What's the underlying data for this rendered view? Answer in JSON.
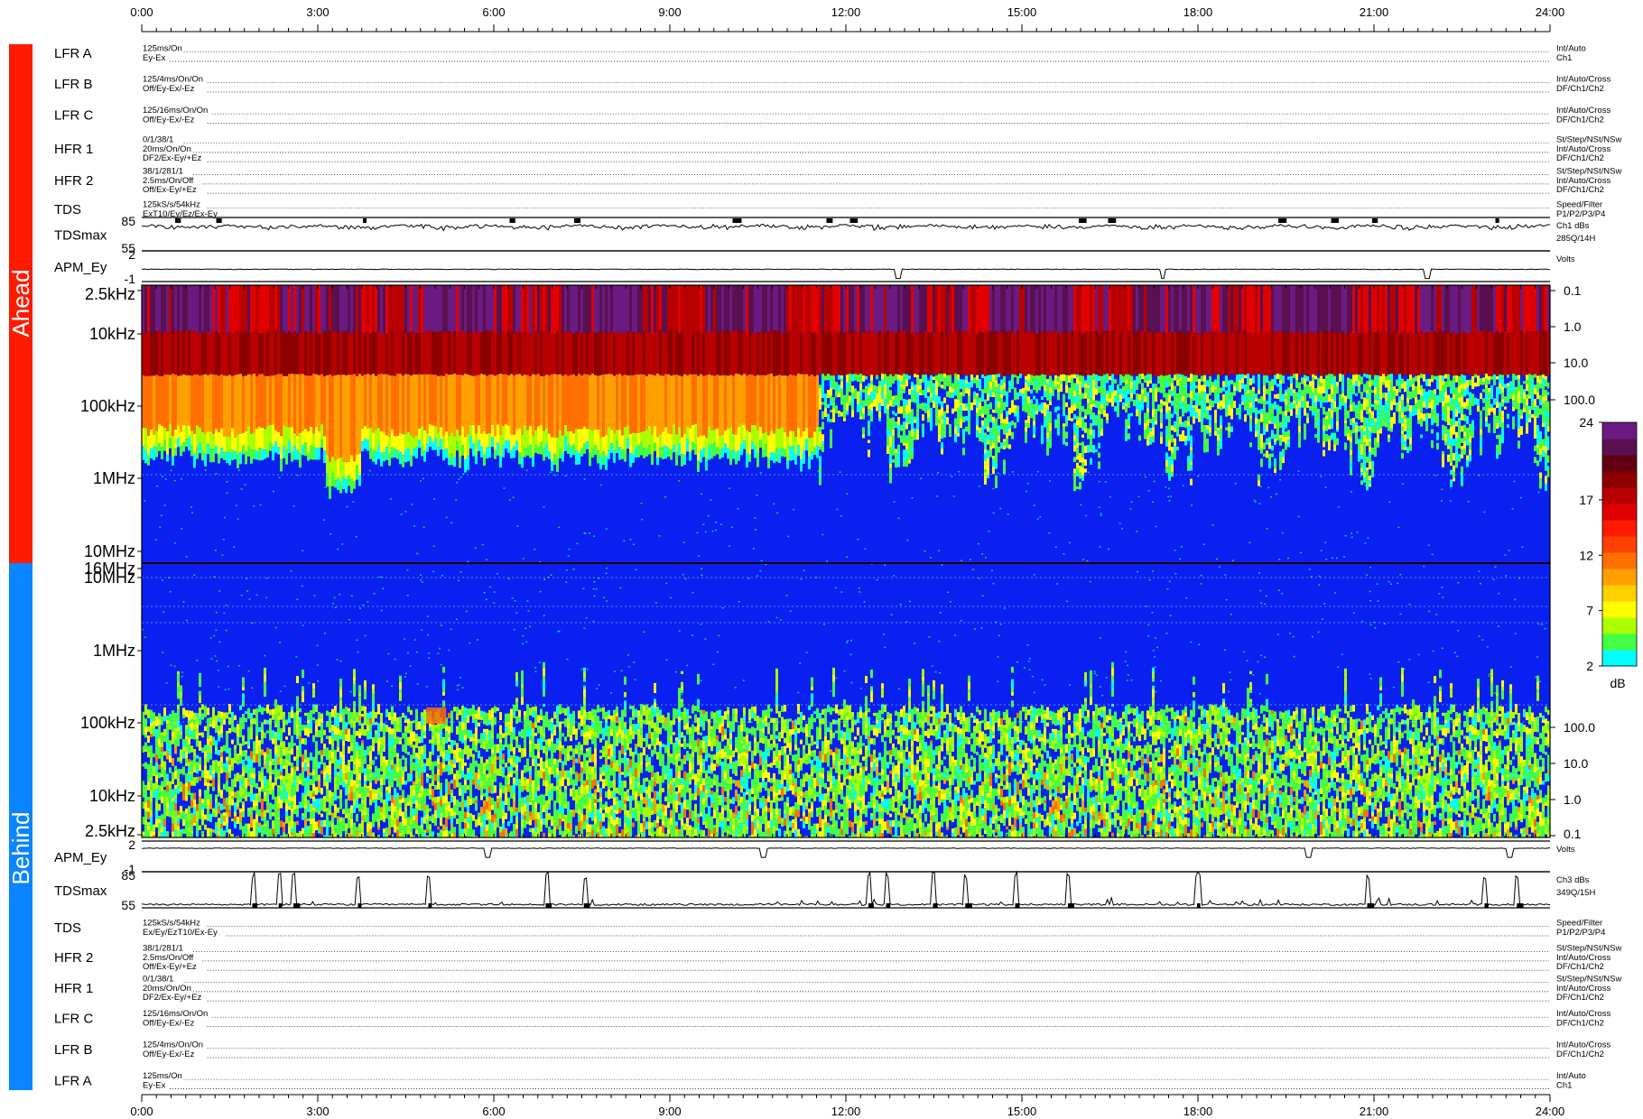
{
  "chart_data": {
    "type": "heatmap",
    "x_axis": {
      "start": "0:00",
      "end": "24:00",
      "tick_labels": [
        "0:00",
        "3:00",
        "6:00",
        "9:00",
        "12:00",
        "15:00",
        "18:00",
        "21:00",
        "24:00"
      ],
      "tick_hours": [
        0,
        3,
        6,
        9,
        12,
        15,
        18,
        21,
        24
      ]
    },
    "side_labels": {
      "ahead": "Ahead",
      "behind": "Behind"
    },
    "side_colors": {
      "ahead": "#ff1a00",
      "behind": "#0a84ff"
    },
    "ahead_rows": [
      {
        "name": "LFR A",
        "lines": [
          "125ms/On",
          "Ey-Ex"
        ],
        "right": [
          "Int/Auto",
          "Ch1"
        ]
      },
      {
        "name": "LFR B",
        "lines": [
          "125/4ms/On/On",
          "Off/Ey-Ex/-Ez"
        ],
        "right": [
          "Int/Auto/Cross",
          "DF/Ch1/Ch2"
        ]
      },
      {
        "name": "LFR C",
        "lines": [
          "125/16ms/On/On",
          "Off/Ey-Ex/-Ez"
        ],
        "right": [
          "Int/Auto/Cross",
          "DF/Ch1/Ch2"
        ]
      },
      {
        "name": "HFR 1",
        "lines": [
          "0/1/38/1",
          "20ms/On/On",
          "DF2/Ex-Ey/+Ez"
        ],
        "right": [
          "St/Step/NSt/NSw",
          "Int/Auto/Cross",
          "DF/Ch1/Ch2"
        ]
      },
      {
        "name": "HFR 2",
        "lines": [
          "38/1/281/1",
          "2.5ms/On/Off",
          "Off/Ex-Ey/+Ez"
        ],
        "right": [
          "St/Step/NSt/NSw",
          "Int/Auto/Cross",
          "DF/Ch1/Ch2"
        ]
      },
      {
        "name": "TDS",
        "lines": [
          "125kS/s/54kHz",
          "ExT10/Ey/Ez/Ex-Ey"
        ],
        "right": [
          "Speed/Filter",
          "P1/P2/P3/P4"
        ]
      }
    ],
    "behind_rows": [
      {
        "name": "TDS",
        "lines": [
          "125kS/s/54kHz",
          "Ex/Ey/EzT10/Ex-Ey"
        ],
        "right": [
          "Speed/Filter",
          "P1/P2/P3/P4"
        ]
      },
      {
        "name": "HFR 2",
        "lines": [
          "38/1/281/1",
          "2.5ms/On/Off",
          "Off/Ex-Ey/+Ez"
        ],
        "right": [
          "St/Step/NSt/NSw",
          "Int/Auto/Cross",
          "DF/Ch1/Ch2"
        ]
      },
      {
        "name": "HFR 1",
        "lines": [
          "0/1/38/1",
          "20ms/On/On",
          "DF2/Ex-Ey/+Ez"
        ],
        "right": [
          "St/Step/NSt/NSw",
          "Int/Auto/Cross",
          "DF/Ch1/Ch2"
        ]
      },
      {
        "name": "LFR C",
        "lines": [
          "125/16ms/On/On",
          "Off/Ey-Ex/-Ez"
        ],
        "right": [
          "Int/Auto/Cross",
          "DF/Ch1/Ch2"
        ]
      },
      {
        "name": "LFR B",
        "lines": [
          "125/4ms/On/On",
          "Off/Ey-Ex/-Ez"
        ],
        "right": [
          "Int/Auto/Cross",
          "DF/Ch1/Ch2"
        ]
      },
      {
        "name": "LFR A",
        "lines": [
          "125ms/On",
          "Ey-Ex"
        ],
        "right": [
          "Int/Auto",
          "Ch1"
        ]
      }
    ],
    "tdsmax_ahead": {
      "name": "TDSmax",
      "y_ticks": [
        "85",
        "55"
      ],
      "right": [
        "Ch1 dBs",
        "285Q/14H"
      ],
      "baseline": 82,
      "range": [
        55,
        85
      ],
      "spike_hours": [
        0.6,
        1.3,
        3.8,
        6.3,
        7.4,
        10.1,
        11.7,
        12.1,
        16.0,
        16.5,
        19.4,
        20.3,
        21.0,
        23.1
      ]
    },
    "apm_ahead": {
      "name": "APM_Ey",
      "y_ticks": [
        "2",
        "-1"
      ],
      "right": [
        "Volts"
      ],
      "range": [
        -1,
        2
      ],
      "baseline": 0.2,
      "dip_hours": [
        12.9,
        17.4,
        21.9
      ]
    },
    "spectrogram": {
      "ahead": {
        "freq_labels": [
          "2.5kHz",
          "10kHz",
          "100kHz",
          "1MHz",
          "10MHz",
          "16MHz"
        ],
        "right_scale": [
          "0.1",
          "1.0",
          "10.0",
          "100.0"
        ]
      },
      "behind": {
        "freq_labels": [
          "10MHz",
          "1MHz",
          "100kHz",
          "10kHz",
          "2.5kHz"
        ],
        "right_scale": [
          "100.0",
          "10.0",
          "1.0",
          "0.1"
        ]
      },
      "colorbar": {
        "unit": "dB",
        "ticks": [
          24,
          17,
          12,
          7,
          2
        ],
        "range": [
          2,
          24
        ],
        "colors": [
          "#00ffff",
          "#44ff44",
          "#aaff00",
          "#ffff00",
          "#ffd000",
          "#ffa000",
          "#ff7000",
          "#ff4000",
          "#ff1a00",
          "#e00000",
          "#b80000",
          "#8c0000",
          "#600010",
          "#5a1050",
          "#6a1a80"
        ]
      }
    },
    "apm_behind": {
      "name": "APM_Ey",
      "y_ticks": [
        "2",
        "-1"
      ],
      "right": [
        "Volts"
      ],
      "range": [
        -1,
        2
      ],
      "baseline": 1.3,
      "dip_hours": [
        5.9,
        10.6,
        19.9,
        23.3
      ]
    },
    "tdsmax_behind": {
      "name": "TDSmax",
      "y_ticks": [
        "85",
        "55"
      ],
      "right": [
        "Ch3 dBs",
        "349Q/15H"
      ],
      "baseline": 57,
      "range": [
        55,
        85
      ],
      "spike_hours": [
        1.9,
        2.35,
        2.6,
        3.7,
        4.9,
        6.9,
        7.55,
        12.4,
        12.7,
        13.5,
        14.05,
        14.9,
        15.8,
        18.0,
        20.9,
        22.9,
        23.45
      ]
    }
  }
}
